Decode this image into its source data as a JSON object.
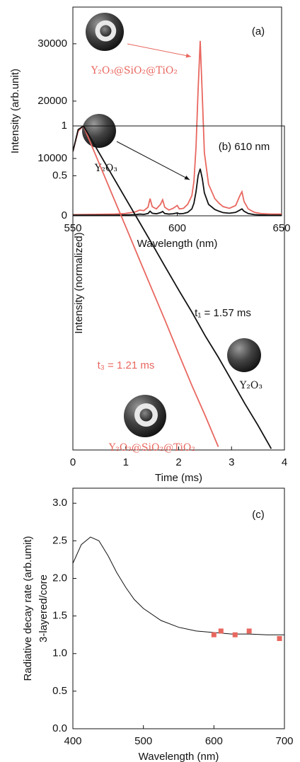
{
  "chart_data": [
    {
      "type": "line",
      "xlabel": "Wavelength (nm)",
      "ylabel": "Intensity (arb.unit)",
      "xlim": [
        550,
        650
      ],
      "ylim": [
        0,
        36400
      ],
      "xticks": [
        550,
        600,
        650
      ],
      "yticks": [
        0,
        10000,
        20000,
        30000
      ],
      "series": [
        {
          "name": "Y₂O₃@SiO₂@TiO₂",
          "color": "#e8675f",
          "x": [
            550,
            560,
            570,
            575,
            580,
            582,
            584,
            586,
            587,
            588,
            590,
            592,
            593,
            594,
            596,
            598,
            600,
            601,
            603,
            605,
            607,
            608,
            609,
            610,
            611,
            612,
            613,
            615,
            618,
            620,
            622,
            625,
            628,
            630,
            631,
            632,
            634,
            637,
            640,
            645,
            650
          ],
          "values": [
            200,
            250,
            300,
            400,
            700,
            1000,
            900,
            1500,
            3000,
            1600,
            1200,
            2000,
            2800,
            1500,
            1000,
            1300,
            1800,
            1200,
            1300,
            2000,
            3500,
            6000,
            12000,
            22000,
            30500,
            21000,
            11000,
            5500,
            3000,
            2200,
            1600,
            1300,
            1800,
            3500,
            4200,
            2500,
            1200,
            600,
            400,
            300,
            300
          ]
        },
        {
          "name": "Y₂O₃",
          "color": "#111111",
          "x": [
            550,
            560,
            570,
            575,
            580,
            582,
            584,
            586,
            587,
            588,
            590,
            592,
            593,
            594,
            596,
            598,
            600,
            601,
            603,
            605,
            607,
            608,
            609,
            610,
            611,
            612,
            613,
            615,
            618,
            620,
            622,
            625,
            628,
            630,
            631,
            632,
            634,
            637,
            640,
            645,
            650
          ],
          "values": [
            100,
            100,
            100,
            150,
            200,
            300,
            250,
            400,
            800,
            450,
            350,
            550,
            750,
            400,
            300,
            350,
            500,
            350,
            400,
            600,
            1200,
            2200,
            4200,
            7000,
            8200,
            6500,
            4000,
            2000,
            1100,
            800,
            550,
            450,
            600,
            1000,
            1200,
            800,
            400,
            200,
            150,
            100,
            100
          ]
        }
      ],
      "annotations": [
        {
          "text": "(a)",
          "color": "#111111"
        }
      ]
    },
    {
      "type": "line",
      "xlabel": "Time (ms)",
      "ylabel": "Intensity (normalized)",
      "log_y": true,
      "xlim": [
        0,
        4
      ],
      "ylim": [
        0.011,
        1
      ],
      "xticks": [
        0,
        1,
        2,
        3,
        4
      ],
      "yticks": [
        0.5,
        1
      ],
      "series": [
        {
          "name": "Y₂O₃@SiO₂@TiO₂",
          "color": "#e8675f",
          "x": [
            0,
            0.1,
            0.2,
            0.5,
            0.75,
            1.0,
            1.25,
            1.5,
            1.75,
            2.0,
            2.25,
            2.5,
            2.75
          ],
          "values": [
            0.7,
            0.93,
            1,
            0.59,
            0.38,
            0.246,
            0.158,
            0.102,
            0.066,
            0.042,
            0.027,
            0.0178,
            0.0115
          ]
        },
        {
          "name": "Y₂O₃",
          "color": "#111111",
          "x": [
            0,
            0.1,
            0.2,
            0.5,
            0.75,
            1.0,
            1.25,
            1.5,
            1.75,
            2.0,
            2.25,
            2.5,
            2.75,
            3.0,
            3.25,
            3.5,
            3.75
          ],
          "values": [
            0.7,
            0.95,
            1,
            0.684,
            0.498,
            0.363,
            0.265,
            0.193,
            0.14,
            0.102,
            0.075,
            0.054,
            0.04,
            0.029,
            0.021,
            0.0155,
            0.0112
          ]
        }
      ],
      "annotations": [
        {
          "text": "(b) 610 nm",
          "color": "#111111"
        },
        {
          "text": "t₁ = 1.57 ms",
          "color": "#111111"
        },
        {
          "text": "t₃ = 1.21 ms",
          "color": "#e8675f"
        }
      ]
    },
    {
      "type": "line",
      "xlabel": "Wavelength (nm)",
      "ylabel": [
        "Radiative decay rate (arb.umit)",
        "3-layered/core"
      ],
      "xlim": [
        400,
        700
      ],
      "ylim": [
        0,
        3.2
      ],
      "xticks": [
        400,
        500,
        600,
        700
      ],
      "yticks": [
        {
          "value": 0,
          "label": "0.0"
        },
        0.5,
        {
          "value": 1,
          "label": "1.0"
        },
        1.5,
        {
          "value": 2,
          "label": "2.0"
        },
        2.5,
        {
          "value": 3,
          "label": "3.0"
        }
      ],
      "series": [
        {
          "color": "#111111",
          "x": [
            400,
            412,
            425,
            437,
            450,
            462,
            475,
            487,
            500,
            525,
            550,
            575,
            600,
            625,
            650,
            675,
            700
          ],
          "values": [
            2.2,
            2.45,
            2.55,
            2.5,
            2.3,
            2.08,
            1.88,
            1.72,
            1.6,
            1.44,
            1.35,
            1.3,
            1.28,
            1.26,
            1.26,
            1.25,
            1.25
          ]
        },
        {
          "color": "#e8675f",
          "marker": "square",
          "x": [
            600,
            610,
            630,
            650,
            693
          ],
          "values": [
            1.25,
            1.3,
            1.25,
            1.3,
            1.2
          ]
        }
      ],
      "annotations": [
        {
          "text": "(c)",
          "color": "#111111"
        }
      ]
    }
  ]
}
